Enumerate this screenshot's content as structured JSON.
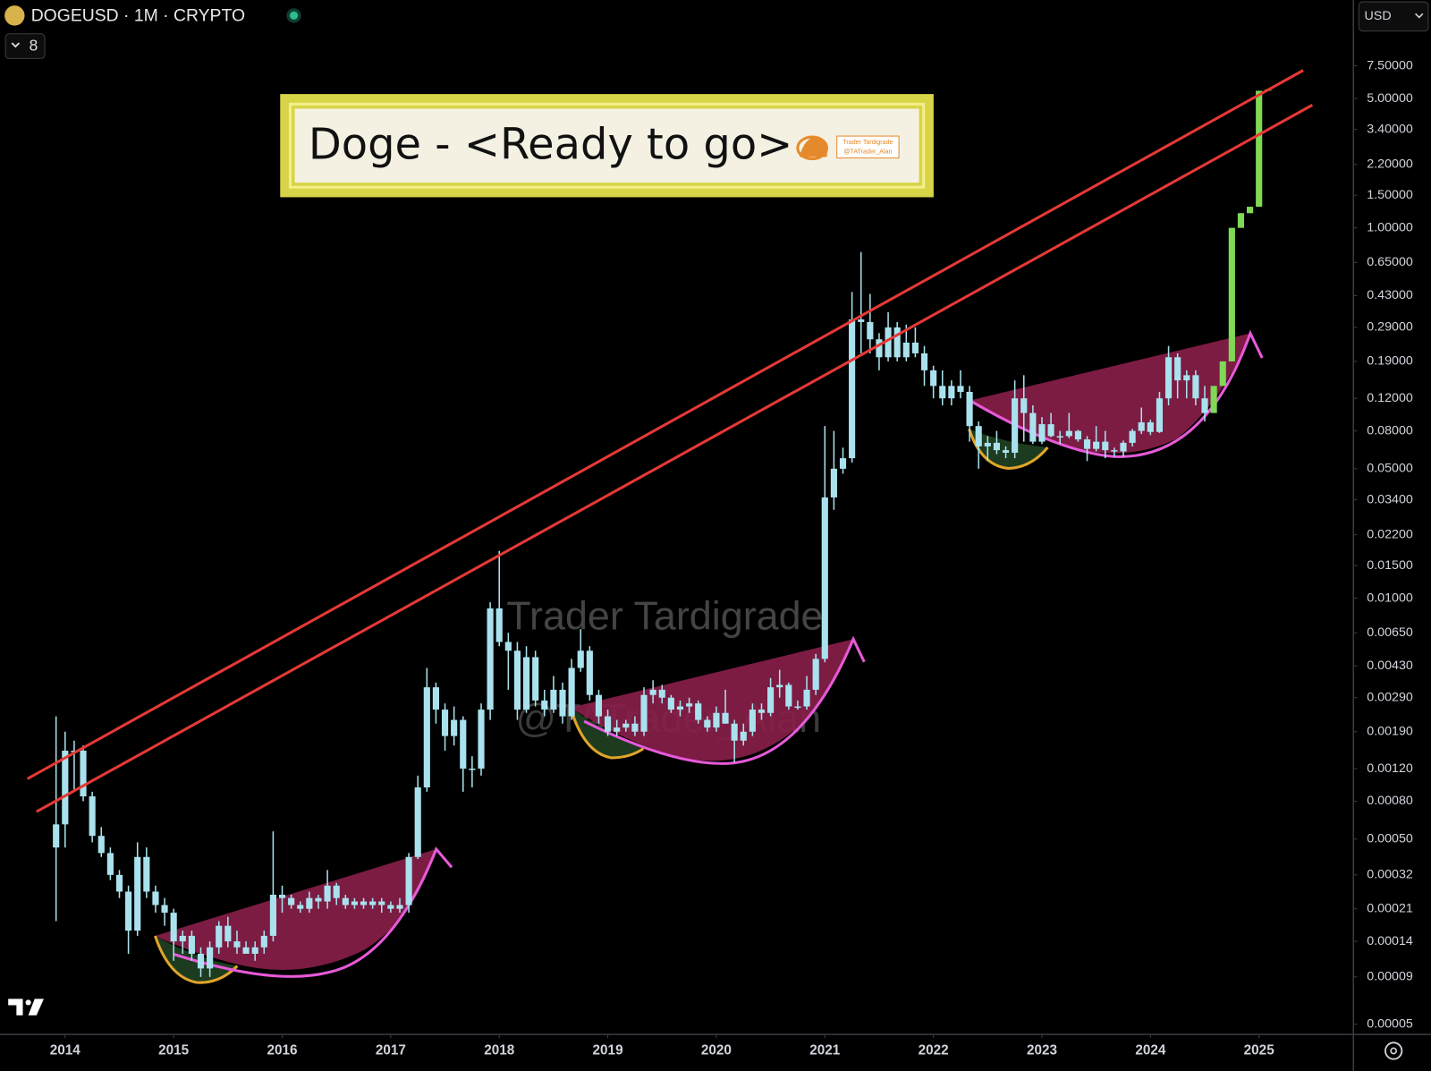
{
  "chart_data": {
    "type": "candlestick",
    "symbol_header": "DOGEUSD · 1M · CRYPTO",
    "indicator_count": 8,
    "currency": "USD",
    "title": "Doge - <Ready to go>",
    "logo_texts": [
      "Trader Tardigrade",
      "@TATrader_Alan"
    ],
    "watermark": [
      "Trader Tardigrade",
      "@TATrader_Alan"
    ],
    "log_scale": true,
    "grid": false,
    "xlim": [
      2013.4,
      2025.87
    ],
    "xticks": [
      2014,
      2015,
      2016,
      2017,
      2018,
      2019,
      2020,
      2021,
      2022,
      2023,
      2024,
      2025
    ],
    "ylim": [
      4.4e-05,
      17
    ],
    "yticks": [
      {
        "value": 7.5,
        "label": "7.50000"
      },
      {
        "value": 5,
        "label": "5.00000"
      },
      {
        "value": 3.4,
        "label": "3.40000"
      },
      {
        "value": 2.2,
        "label": "2.20000"
      },
      {
        "value": 1.5,
        "label": "1.50000"
      },
      {
        "value": 1,
        "label": "1.00000"
      },
      {
        "value": 0.65,
        "label": "0.65000"
      },
      {
        "value": 0.43,
        "label": "0.43000"
      },
      {
        "value": 0.29,
        "label": "0.29000"
      },
      {
        "value": 0.19,
        "label": "0.19000"
      },
      {
        "value": 0.12,
        "label": "0.12000"
      },
      {
        "value": 0.08,
        "label": "0.08000"
      },
      {
        "value": 0.05,
        "label": "0.05000"
      },
      {
        "value": 0.034,
        "label": "0.03400"
      },
      {
        "value": 0.022,
        "label": "0.02200"
      },
      {
        "value": 0.015,
        "label": "0.01500"
      },
      {
        "value": 0.01,
        "label": "0.01000"
      },
      {
        "value": 0.0065,
        "label": "0.00650"
      },
      {
        "value": 0.0043,
        "label": "0.00430"
      },
      {
        "value": 0.0029,
        "label": "0.00290"
      },
      {
        "value": 0.0019,
        "label": "0.00190"
      },
      {
        "value": 0.0012,
        "label": "0.00120"
      },
      {
        "value": 0.0008,
        "label": "0.00080"
      },
      {
        "value": 0.0005,
        "label": "0.00050"
      },
      {
        "value": 0.00032,
        "label": "0.00032"
      },
      {
        "value": 0.00021,
        "label": "0.00021"
      },
      {
        "value": 0.00014,
        "label": "0.00014"
      },
      {
        "value": 9e-05,
        "label": "0.00009"
      },
      {
        "value": 5e-05,
        "label": "0.00005"
      }
    ],
    "series": [
      {
        "color": "#a9e2ee",
        "x": [
          "2013-12",
          "2014-01",
          "2014-02",
          "2014-03",
          "2014-04",
          "2014-05",
          "2014-06",
          "2014-07",
          "2014-08",
          "2014-09",
          "2014-10",
          "2014-11",
          "2014-12",
          "2015-01",
          "2015-02",
          "2015-03",
          "2015-04",
          "2015-05",
          "2015-06",
          "2015-07",
          "2015-08",
          "2015-09",
          "2015-10",
          "2015-11",
          "2015-12",
          "2016-01",
          "2016-02",
          "2016-03",
          "2016-04",
          "2016-05",
          "2016-06",
          "2016-07",
          "2016-08",
          "2016-09",
          "2016-10",
          "2016-11",
          "2016-12",
          "2017-01",
          "2017-02",
          "2017-03",
          "2017-04",
          "2017-05",
          "2017-06",
          "2017-07",
          "2017-08",
          "2017-09",
          "2017-10",
          "2017-11",
          "2017-12",
          "2018-01",
          "2018-02",
          "2018-03",
          "2018-04",
          "2018-05",
          "2018-06",
          "2018-07",
          "2018-08",
          "2018-09",
          "2018-10",
          "2018-11",
          "2018-12",
          "2019-01",
          "2019-02",
          "2019-03",
          "2019-04",
          "2019-05",
          "2019-06",
          "2019-07",
          "2019-08",
          "2019-09",
          "2019-10",
          "2019-11",
          "2019-12",
          "2020-01",
          "2020-02",
          "2020-03",
          "2020-04",
          "2020-05",
          "2020-06",
          "2020-07",
          "2020-08",
          "2020-09",
          "2020-10",
          "2020-11",
          "2020-12",
          "2021-01",
          "2021-02",
          "2021-03",
          "2021-04",
          "2021-05",
          "2021-06",
          "2021-07",
          "2021-08",
          "2021-09",
          "2021-10",
          "2021-11",
          "2021-12",
          "2022-01",
          "2022-02",
          "2022-03",
          "2022-04",
          "2022-05",
          "2022-06",
          "2022-07",
          "2022-08",
          "2022-09",
          "2022-10",
          "2022-11",
          "2022-12",
          "2023-01",
          "2023-02",
          "2023-03",
          "2023-04",
          "2023-05",
          "2023-06",
          "2023-07",
          "2023-08",
          "2023-09",
          "2023-10",
          "2023-11",
          "2023-12",
          "2024-01",
          "2024-02",
          "2024-03",
          "2024-04",
          "2024-05",
          "2024-06",
          "2024-07"
        ],
        "ohlc": [
          [
            0.00045,
            0.0023,
            0.00018,
            0.0006
          ],
          [
            0.0006,
            0.0019,
            0.00045,
            0.0015
          ],
          [
            0.0015,
            0.0017,
            0.0009,
            0.0015
          ],
          [
            0.0015,
            0.0016,
            0.0008,
            0.00085
          ],
          [
            0.00085,
            0.0009,
            0.00048,
            0.00052
          ],
          [
            0.00052,
            0.00058,
            0.0004,
            0.00042
          ],
          [
            0.00042,
            0.00045,
            0.0003,
            0.00032
          ],
          [
            0.00032,
            0.00034,
            0.00024,
            0.00026
          ],
          [
            0.00026,
            0.00028,
            0.00012,
            0.00016
          ],
          [
            0.00016,
            0.00048,
            0.00015,
            0.0004
          ],
          [
            0.0004,
            0.00045,
            0.00024,
            0.00026
          ],
          [
            0.00026,
            0.00028,
            0.0002,
            0.00022
          ],
          [
            0.00022,
            0.00024,
            0.00017,
            0.0002
          ],
          [
            0.0002,
            0.00021,
            0.00011,
            0.00014
          ],
          [
            0.00014,
            0.00016,
            0.00012,
            0.00015
          ],
          [
            0.00015,
            0.00016,
            0.00011,
            0.00012
          ],
          [
            0.00012,
            0.00013,
            9e-05,
            0.0001
          ],
          [
            0.0001,
            0.00014,
            9e-05,
            0.00013
          ],
          [
            0.00013,
            0.00018,
            0.00012,
            0.00017
          ],
          [
            0.00017,
            0.00019,
            0.00013,
            0.00014
          ],
          [
            0.00014,
            0.00016,
            0.00012,
            0.00013
          ],
          [
            0.00013,
            0.00014,
            0.00012,
            0.00012
          ],
          [
            0.00012,
            0.00014,
            0.00011,
            0.00013
          ],
          [
            0.00013,
            0.00016,
            0.00012,
            0.00015
          ],
          [
            0.00015,
            0.00055,
            0.00014,
            0.00025
          ],
          [
            0.00025,
            0.00028,
            0.0002,
            0.00024
          ],
          [
            0.00024,
            0.00025,
            0.00021,
            0.00022
          ],
          [
            0.00022,
            0.00023,
            0.0002,
            0.00021
          ],
          [
            0.00021,
            0.00026,
            0.0002,
            0.00024
          ],
          [
            0.00024,
            0.00025,
            0.00021,
            0.00023
          ],
          [
            0.00023,
            0.00034,
            0.00021,
            0.00028
          ],
          [
            0.00028,
            0.00029,
            0.00022,
            0.00024
          ],
          [
            0.00024,
            0.00025,
            0.00021,
            0.00022
          ],
          [
            0.00022,
            0.00024,
            0.00021,
            0.00023
          ],
          [
            0.00023,
            0.00024,
            0.00021,
            0.00022
          ],
          [
            0.00022,
            0.00024,
            0.00021,
            0.00023
          ],
          [
            0.00023,
            0.00024,
            0.0002,
            0.00022
          ],
          [
            0.00022,
            0.00023,
            0.0002,
            0.00021
          ],
          [
            0.00021,
            0.00024,
            0.0002,
            0.00022
          ],
          [
            0.00022,
            0.00042,
            0.0002,
            0.0004
          ],
          [
            0.0004,
            0.0011,
            0.00039,
            0.00095
          ],
          [
            0.00095,
            0.0042,
            0.0009,
            0.0033
          ],
          [
            0.0033,
            0.0035,
            0.0021,
            0.0025
          ],
          [
            0.0025,
            0.0027,
            0.0015,
            0.0018
          ],
          [
            0.0018,
            0.0026,
            0.0016,
            0.0022
          ],
          [
            0.0022,
            0.0023,
            0.0009,
            0.0012
          ],
          [
            0.0012,
            0.0014,
            0.00095,
            0.0012
          ],
          [
            0.0012,
            0.0027,
            0.0011,
            0.0025
          ],
          [
            0.0025,
            0.0095,
            0.0022,
            0.0088
          ],
          [
            0.0088,
            0.018,
            0.0055,
            0.0058
          ],
          [
            0.0058,
            0.0065,
            0.0032,
            0.0052
          ],
          [
            0.0052,
            0.0058,
            0.0022,
            0.0025
          ],
          [
            0.0025,
            0.0055,
            0.0024,
            0.0048
          ],
          [
            0.0048,
            0.0052,
            0.0026,
            0.0028
          ],
          [
            0.0028,
            0.0032,
            0.0023,
            0.0025
          ],
          [
            0.0025,
            0.0038,
            0.0024,
            0.0032
          ],
          [
            0.0032,
            0.0035,
            0.0021,
            0.0023
          ],
          [
            0.0023,
            0.0047,
            0.0022,
            0.0042
          ],
          [
            0.0042,
            0.0068,
            0.004,
            0.0052
          ],
          [
            0.0052,
            0.0055,
            0.0028,
            0.003
          ],
          [
            0.003,
            0.0032,
            0.0021,
            0.0023
          ],
          [
            0.0023,
            0.0025,
            0.0018,
            0.0019
          ],
          [
            0.0019,
            0.0022,
            0.0018,
            0.002
          ],
          [
            0.002,
            0.0022,
            0.0019,
            0.0021
          ],
          [
            0.0021,
            0.0023,
            0.0018,
            0.0019
          ],
          [
            0.0019,
            0.0033,
            0.0018,
            0.003
          ],
          [
            0.003,
            0.0036,
            0.0027,
            0.0032
          ],
          [
            0.0032,
            0.0034,
            0.0027,
            0.0029
          ],
          [
            0.0029,
            0.003,
            0.0024,
            0.0025
          ],
          [
            0.0025,
            0.0028,
            0.0023,
            0.0026
          ],
          [
            0.0026,
            0.0029,
            0.0024,
            0.0027
          ],
          [
            0.0027,
            0.0028,
            0.0021,
            0.0022
          ],
          [
            0.0022,
            0.0023,
            0.0019,
            0.002
          ],
          [
            0.002,
            0.0026,
            0.0019,
            0.0024
          ],
          [
            0.0024,
            0.0032,
            0.0021,
            0.0021
          ],
          [
            0.0021,
            0.0022,
            0.0013,
            0.0017
          ],
          [
            0.0017,
            0.0021,
            0.0016,
            0.0019
          ],
          [
            0.0019,
            0.0027,
            0.0018,
            0.0025
          ],
          [
            0.0025,
            0.0027,
            0.0022,
            0.0024
          ],
          [
            0.0024,
            0.0037,
            0.0023,
            0.0033
          ],
          [
            0.0033,
            0.0041,
            0.0029,
            0.0034
          ],
          [
            0.0034,
            0.0035,
            0.0025,
            0.0026
          ],
          [
            0.0026,
            0.0028,
            0.0025,
            0.0026
          ],
          [
            0.0026,
            0.0038,
            0.0025,
            0.0032
          ],
          [
            0.0032,
            0.005,
            0.003,
            0.0047
          ],
          [
            0.0047,
            0.085,
            0.0045,
            0.035
          ],
          [
            0.035,
            0.08,
            0.03,
            0.05
          ],
          [
            0.05,
            0.065,
            0.047,
            0.057
          ],
          [
            0.057,
            0.45,
            0.054,
            0.32
          ],
          [
            0.32,
            0.74,
            0.21,
            0.31
          ],
          [
            0.31,
            0.44,
            0.21,
            0.25
          ],
          [
            0.25,
            0.27,
            0.17,
            0.2
          ],
          [
            0.2,
            0.35,
            0.19,
            0.29
          ],
          [
            0.29,
            0.31,
            0.19,
            0.2
          ],
          [
            0.2,
            0.3,
            0.19,
            0.24
          ],
          [
            0.24,
            0.29,
            0.2,
            0.21
          ],
          [
            0.21,
            0.23,
            0.14,
            0.17
          ],
          [
            0.17,
            0.18,
            0.12,
            0.14
          ],
          [
            0.14,
            0.17,
            0.11,
            0.12
          ],
          [
            0.12,
            0.15,
            0.11,
            0.14
          ],
          [
            0.14,
            0.17,
            0.12,
            0.13
          ],
          [
            0.13,
            0.14,
            0.07,
            0.085
          ],
          [
            0.085,
            0.09,
            0.05,
            0.066
          ],
          [
            0.066,
            0.075,
            0.055,
            0.069
          ],
          [
            0.069,
            0.08,
            0.06,
            0.063
          ],
          [
            0.063,
            0.066,
            0.057,
            0.061
          ],
          [
            0.061,
            0.15,
            0.057,
            0.12
          ],
          [
            0.12,
            0.16,
            0.07,
            0.1
          ],
          [
            0.1,
            0.11,
            0.068,
            0.07
          ],
          [
            0.07,
            0.095,
            0.068,
            0.087
          ],
          [
            0.087,
            0.1,
            0.074,
            0.075
          ],
          [
            0.075,
            0.08,
            0.068,
            0.075
          ],
          [
            0.075,
            0.1,
            0.073,
            0.08
          ],
          [
            0.08,
            0.081,
            0.07,
            0.072
          ],
          [
            0.072,
            0.075,
            0.055,
            0.064
          ],
          [
            0.064,
            0.085,
            0.062,
            0.07
          ],
          [
            0.07,
            0.08,
            0.057,
            0.063
          ],
          [
            0.063,
            0.065,
            0.058,
            0.062
          ],
          [
            0.062,
            0.071,
            0.058,
            0.069
          ],
          [
            0.069,
            0.082,
            0.066,
            0.08
          ],
          [
            0.08,
            0.107,
            0.077,
            0.089
          ],
          [
            0.089,
            0.092,
            0.076,
            0.079
          ],
          [
            0.079,
            0.13,
            0.078,
            0.12
          ],
          [
            0.12,
            0.23,
            0.11,
            0.2
          ],
          [
            0.2,
            0.21,
            0.12,
            0.15
          ],
          [
            0.15,
            0.17,
            0.12,
            0.16
          ],
          [
            0.16,
            0.17,
            0.11,
            0.12
          ],
          [
            0.12,
            0.14,
            0.09,
            0.1
          ]
        ]
      },
      {
        "color": "#7ed957",
        "x": [
          "2024-08",
          "2024-09",
          "2024-10",
          "2024-11",
          "2024-12",
          "2025-01",
          "2025-02"
        ],
        "ohlc": [
          [
            0.1,
            0.14,
            0.1,
            0.14
          ],
          [
            0.14,
            0.19,
            0.14,
            0.19
          ],
          [
            0.19,
            1.0,
            0.19,
            1.0
          ],
          [
            1.0,
            1.2,
            1.0,
            1.2
          ],
          [
            1.2,
            1.3,
            1.2,
            1.3
          ],
          [
            1.3,
            5.5,
            1.3,
            5.5
          ],
          [
            5.5,
            5.6,
            5.5,
            5.6
          ]
        ]
      }
    ]
  }
}
